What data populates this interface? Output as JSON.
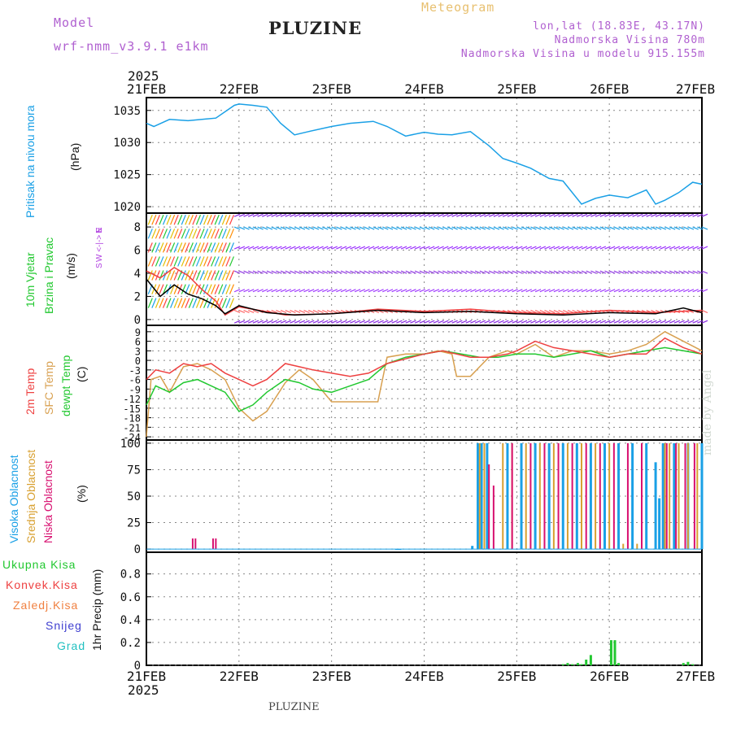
{
  "header": {
    "model_label": "Model",
    "model_name": "wrf-nmm_v3.9.1 e1km",
    "title": "PLUZINE",
    "subtitle": "Meteogram",
    "location": "lon,lat (18.83E, 43.17N)",
    "elevation": "Nadmorska Visina 780m",
    "model_elevation": "Nadmorska Visina u modelu 915.155m"
  },
  "footer": {
    "station": "PLUZINE"
  },
  "watermark": "made by Angel",
  "colors": {
    "pressure": "#1aa0e6",
    "temp2m": "#ee4040",
    "sfc_temp": "#d8a050",
    "dewpt": "#22c830",
    "cloud_high": "#1aa0e6",
    "cloud_mid": "#d8a030",
    "cloud_low": "#d81070",
    "precip_total": "#22c830",
    "precip_conv": "#ee4040",
    "precip_frozen": "#f08040",
    "precip_snow": "#4040d0",
    "precip_hail": "#20c0c0",
    "wind_label": "#22c830",
    "wind_dir": "#b040e0"
  },
  "chart_data": [
    {
      "type": "line",
      "title": "",
      "axis_year": "2025",
      "x_ticks": [
        "21FEB",
        "22FEB",
        "23FEB",
        "24FEB",
        "25FEB",
        "26FEB",
        "27FEB"
      ],
      "y_label_lines": [
        "Pritisak na nivou mora",
        "(hPa)"
      ],
      "y_ticks": [
        "1020",
        "1025",
        "1030",
        "1035"
      ],
      "ylim": [
        1019,
        1037
      ],
      "grid": true,
      "series": [
        {
          "name": "Pritisak na nivou mora",
          "x": [
            0,
            0.08,
            0.25,
            0.45,
            0.75,
            0.95,
            1.0,
            1.15,
            1.3,
            1.45,
            1.6,
            1.75,
            2.0,
            2.2,
            2.45,
            2.6,
            2.8,
            3.0,
            3.15,
            3.3,
            3.5,
            3.7,
            3.85,
            4.0,
            4.15,
            4.35,
            4.5,
            4.7,
            4.85,
            5.0,
            5.2,
            5.4,
            5.5,
            5.6,
            5.75,
            5.9,
            6.0
          ],
          "values": [
            1033.0,
            1032.5,
            1033.6,
            1033.4,
            1033.8,
            1035.8,
            1036.0,
            1035.8,
            1035.5,
            1033.0,
            1031.2,
            1031.7,
            1032.5,
            1033.0,
            1033.3,
            1032.5,
            1031.0,
            1031.6,
            1031.3,
            1031.2,
            1031.7,
            1029.5,
            1027.5,
            1026.8,
            1026.0,
            1024.4,
            1024.0,
            1020.4,
            1021.3,
            1021.8,
            1021.4,
            1022.6,
            1020.4,
            1021.0,
            1022.2,
            1023.8,
            1023.5
          ]
        }
      ]
    },
    {
      "type": "line",
      "title": "",
      "y_label_lines": [
        "10m Vjetar",
        "Brzina i Pravac",
        "(m/s)"
      ],
      "direction_legend": [
        "N",
        "W <-|-> E",
        "S"
      ],
      "y_ticks": [
        "0",
        "2",
        "4",
        "6",
        "8"
      ],
      "ylim": [
        -0.5,
        9.2
      ],
      "grid": true,
      "wind_barb_rows": [
        8.9,
        8.0,
        6.1,
        4.2,
        2.4,
        0.8,
        -0.3
      ],
      "series": [
        {
          "name": "10m wind speed",
          "x": [
            0,
            0.15,
            0.3,
            0.45,
            0.6,
            0.75,
            0.85,
            1.0,
            1.3,
            1.6,
            2.0,
            2.5,
            3.0,
            3.5,
            4.0,
            4.5,
            5.0,
            5.5,
            5.8,
            6.0
          ],
          "values": [
            3.5,
            2.0,
            3.0,
            2.2,
            1.8,
            1.2,
            0.5,
            1.2,
            0.6,
            0.4,
            0.5,
            0.8,
            0.6,
            0.7,
            0.5,
            0.4,
            0.6,
            0.5,
            1.0,
            0.6
          ]
        },
        {
          "name": "gust",
          "x": [
            0,
            0.15,
            0.3,
            0.45,
            0.6,
            0.75,
            0.85,
            1.0,
            1.5,
            2.0,
            2.5,
            3.0,
            3.5,
            4.0,
            4.5,
            5.0,
            5.5,
            6.0
          ],
          "values": [
            4.2,
            3.6,
            4.5,
            3.8,
            2.6,
            1.6,
            0.4,
            1.1,
            0.4,
            0.5,
            0.9,
            0.7,
            0.9,
            0.6,
            0.5,
            0.8,
            0.6,
            0.8
          ]
        }
      ]
    },
    {
      "type": "line",
      "title": "",
      "y_label_lines": [
        "2m Temp",
        "SFC Temp",
        "dewpt Temp",
        "(C)"
      ],
      "y_ticks": [
        "9",
        "6",
        "3",
        "0",
        "-3",
        "-6",
        "-9",
        "-12",
        "-15",
        "-18",
        "-21",
        "-24"
      ],
      "ylim": [
        -25,
        11
      ],
      "grid": true,
      "series": [
        {
          "name": "2m Temp",
          "x": [
            0,
            0.1,
            0.25,
            0.4,
            0.55,
            0.7,
            0.85,
            1.0,
            1.15,
            1.3,
            1.5,
            1.65,
            1.8,
            2.0,
            2.2,
            2.4,
            2.6,
            3.0,
            3.2,
            3.35,
            3.5,
            3.7,
            3.9,
            4.0,
            4.2,
            4.4,
            4.6,
            4.8,
            5.0,
            5.2,
            5.4,
            5.6,
            5.8,
            6.0
          ],
          "values": [
            -6,
            -3,
            -4,
            -1,
            -2,
            -1,
            -4,
            -6,
            -8,
            -6,
            -1,
            -2,
            -3,
            -4,
            -5,
            -4,
            -1,
            2,
            3,
            2,
            1,
            1,
            2,
            3,
            6,
            4,
            3,
            2,
            1,
            2,
            2,
            7,
            4,
            2
          ]
        },
        {
          "name": "SFC Temp",
          "x": [
            0,
            0.05,
            0.15,
            0.25,
            0.4,
            0.55,
            0.7,
            0.85,
            1.0,
            1.15,
            1.3,
            1.5,
            1.65,
            1.8,
            2.0,
            2.2,
            2.4,
            2.5,
            2.6,
            2.8,
            3.0,
            3.15,
            3.3,
            3.35,
            3.5,
            3.6,
            3.7,
            3.9,
            4.0,
            4.2,
            4.4,
            4.6,
            4.8,
            5.0,
            5.2,
            5.4,
            5.6,
            5.8,
            6.0
          ],
          "values": [
            -24,
            -6,
            -5,
            -10,
            -2,
            -1,
            -3,
            -6,
            -15,
            -19,
            -16,
            -7,
            -3,
            -6,
            -13,
            -13,
            -13,
            -13,
            1,
            2,
            2,
            3,
            2,
            -5,
            -5,
            -2,
            1,
            3,
            2,
            5,
            1,
            3,
            3,
            2,
            3,
            5,
            9,
            6,
            3
          ]
        },
        {
          "name": "dewpt Temp",
          "x": [
            0,
            0.1,
            0.25,
            0.4,
            0.55,
            0.7,
            0.85,
            1.0,
            1.15,
            1.3,
            1.5,
            1.65,
            1.8,
            2.0,
            2.2,
            2.4,
            2.6,
            2.8,
            3.0,
            3.2,
            3.4,
            3.6,
            3.8,
            4.0,
            4.2,
            4.4,
            4.6,
            4.8,
            5.0,
            5.2,
            5.4,
            5.6,
            5.8,
            6.0
          ],
          "values": [
            -14,
            -8,
            -10,
            -7,
            -6,
            -8,
            -10,
            -16,
            -14,
            -10,
            -6,
            -7,
            -9,
            -10,
            -8,
            -6,
            -1,
            1,
            2,
            3,
            2,
            1,
            1,
            2,
            2,
            1,
            2,
            3,
            1,
            2,
            3,
            4,
            3,
            2
          ]
        }
      ]
    },
    {
      "type": "bar",
      "title": "",
      "y_label_lines": [
        "Visoka Oblacnost",
        "Srednja Oblacnost",
        "Niska Oblacnost",
        "(%)"
      ],
      "y_ticks": [
        "0",
        "25",
        "50",
        "75",
        "100"
      ],
      "ylim": [
        -3,
        103
      ],
      "grid": true,
      "series": [
        {
          "name": "Visoka Oblacnost",
          "x": [
            2.7,
            2.72,
            2.74,
            3.52,
            3.58,
            3.62,
            3.68,
            3.9,
            4.05,
            4.2,
            4.35,
            4.5,
            4.65,
            4.8,
            4.95,
            5.1,
            5.25,
            5.4,
            5.5,
            5.54,
            5.58,
            5.7,
            5.85,
            6.0
          ],
          "values": [
            0,
            0,
            0,
            3,
            100,
            100,
            100,
            100,
            100,
            100,
            100,
            100,
            100,
            100,
            100,
            100,
            100,
            100,
            82,
            48,
            100,
            100,
            100,
            100
          ]
        },
        {
          "name": "Srednja Oblacnost",
          "x": [
            3.6,
            3.65,
            3.85,
            3.95,
            4.1,
            4.25,
            4.4,
            4.55,
            4.7,
            4.85,
            5.0,
            5.15,
            5.3,
            5.6,
            5.65,
            5.75,
            5.85,
            5.95
          ],
          "values": [
            100,
            100,
            100,
            100,
            100,
            100,
            100,
            100,
            100,
            100,
            100,
            5,
            5,
            100,
            100,
            100,
            100,
            100
          ]
        },
        {
          "name": "Niska Oblacnost",
          "x": [
            0.5,
            0.53,
            0.72,
            0.75,
            3.7,
            3.75,
            3.95,
            4.15,
            4.3,
            4.45,
            4.6,
            4.75,
            4.9,
            5.05,
            5.2,
            5.35,
            5.62,
            5.72,
            5.82,
            5.92
          ],
          "values": [
            10,
            10,
            10,
            10,
            80,
            60,
            100,
            100,
            100,
            100,
            100,
            100,
            100,
            100,
            100,
            100,
            100,
            100,
            100,
            100
          ]
        }
      ]
    },
    {
      "type": "bar",
      "title": "",
      "y_label_lines": [
        "1hr Precip (mm)"
      ],
      "legend": [
        "Ukupna Kisa",
        "Konvek.Kisa",
        "Zaledj.Kisa",
        "Snijeg",
        "Grad"
      ],
      "x_ticks_bottom": [
        "21FEB",
        "22FEB",
        "23FEB",
        "24FEB",
        "25FEB",
        "26FEB",
        "27FEB"
      ],
      "axis_year_bottom": "2025",
      "y_ticks": [
        "0",
        "0.2",
        "0.4",
        "0.6",
        "0.8"
      ],
      "ylim": [
        0,
        0.99
      ],
      "grid": true,
      "series": [
        {
          "name": "Ukupna Kisa",
          "x": [
            4.5,
            4.55,
            4.6,
            4.66,
            4.7,
            4.75,
            4.8,
            5.02,
            5.06,
            5.1,
            5.8,
            5.85,
            5.9,
            6.35,
            6.4,
            6.45
          ],
          "values": [
            0.01,
            0.02,
            0.01,
            0.02,
            0.01,
            0.05,
            0.09,
            0.22,
            0.22,
            0.02,
            0.02,
            0.03,
            0.01,
            0.05,
            0.04,
            0.02
          ]
        }
      ]
    }
  ]
}
